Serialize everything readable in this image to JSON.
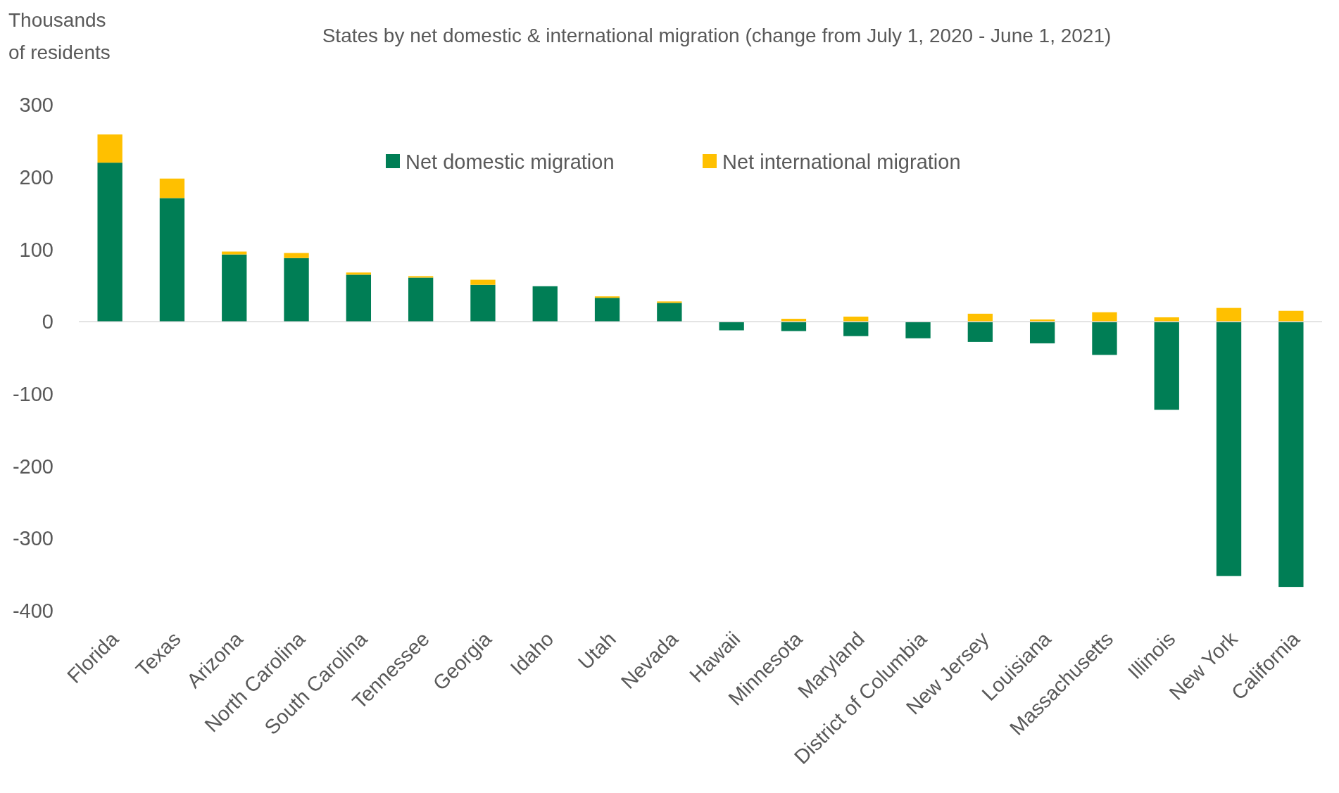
{
  "chart_data": {
    "type": "bar",
    "stacked": true,
    "title": "States by net domestic & international migration (change from July 1, 2020 - June 1, 2021)",
    "ylabel": "Thousands of residents",
    "categories": [
      "Florida",
      "Texas",
      "Arizona",
      "North Carolina",
      "South Carolina",
      "Tennessee",
      "Georgia",
      "Idaho",
      "Utah",
      "Nevada",
      "Hawaii",
      "Minnesota",
      "Maryland",
      "District of Columbia",
      "New Jersey",
      "Louisiana",
      "Massachusetts",
      "Illinois",
      "New York",
      "California"
    ],
    "series": [
      {
        "name": "Net domestic migration",
        "color": "#007e55",
        "values": [
          220,
          171,
          93,
          88,
          65,
          61,
          51,
          49,
          33,
          26,
          -12,
          -13,
          -20,
          -23,
          -28,
          -30,
          -46,
          -122,
          -352,
          -367
        ]
      },
      {
        "name": "Net international migration",
        "color": "#ffc000",
        "values": [
          39,
          27,
          4,
          7,
          3,
          2,
          7,
          0,
          2,
          2,
          0,
          4,
          7,
          0,
          11,
          3,
          13,
          6,
          19,
          15
        ]
      }
    ],
    "ylim": [
      -400,
      300
    ],
    "yticks": [
      -400,
      -300,
      -200,
      -100,
      0,
      100,
      200,
      300
    ],
    "legend": "top",
    "ref_lines": [
      {
        "axis": "y",
        "value": 0,
        "color": "#d9d9d9"
      }
    ]
  }
}
